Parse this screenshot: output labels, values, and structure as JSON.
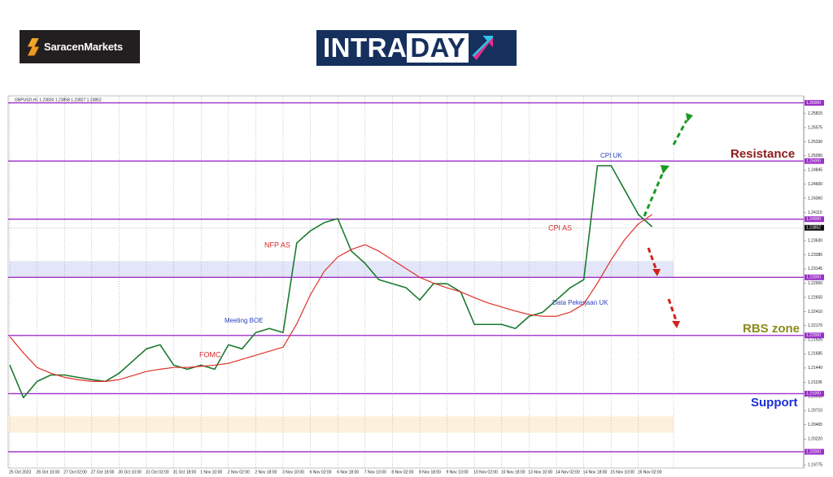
{
  "header": {
    "brand": "SaracenMarkets",
    "banner_left": "INTRA",
    "banner_right": "DAY"
  },
  "chart_data": {
    "type": "line",
    "title": "GBPUSD,H1  1.23830 1.23858 1.23827 1.23852",
    "categories": [
      "25 Oct 2023",
      null,
      "26 Oct 10:00",
      null,
      "27 Oct 02:00",
      null,
      "27 Oct 18:00",
      null,
      "30 Oct 10:00",
      null,
      "31 Oct 02:00",
      null,
      "31 Oct 18:00",
      null,
      "1 Nov 10:00",
      null,
      "2 Nov 02:00",
      null,
      "2 Nov 18:00",
      null,
      "3 Nov 10:00",
      null,
      "6 Nov 02:00",
      null,
      "6 Nov 18:00",
      null,
      "7 Nov 10:00",
      null,
      "8 Nov 02:00",
      null,
      "8 Nov 18:00",
      null,
      "9 Nov 10:00",
      null,
      "10 Nov 02:00",
      null,
      "10 Nov 18:00",
      null,
      "13 Nov 10:00",
      null,
      "14 Nov 02:00",
      null,
      "14 Nov 18:00",
      null,
      "15 Nov 10:00",
      null,
      "16 Nov 02:00",
      null
    ],
    "series": [
      {
        "color": "#1a7a2e",
        "values": [
          1.2149,
          1.2093,
          1.2121,
          1.2132,
          1.2132,
          1.2128,
          1.2124,
          1.2121,
          1.2135,
          1.2156,
          1.2177,
          1.2184,
          1.2149,
          1.2142,
          1.2149,
          1.2142,
          1.2184,
          1.2177,
          1.2205,
          1.2212,
          1.2205,
          1.2359,
          1.238,
          1.2394,
          1.2401,
          1.2345,
          1.2324,
          1.2296,
          1.2289,
          1.2282,
          1.2261,
          1.2289,
          1.2289,
          1.2275,
          1.2219,
          1.2219,
          1.2219,
          1.2212,
          1.2233,
          1.224,
          1.2261,
          1.2282,
          1.2296,
          1.2492,
          1.2492,
          1.245,
          1.2408,
          1.2387
        ]
      },
      {
        "color": "#e0302a",
        "values": [
          1.2198,
          1.217,
          1.2145,
          1.2135,
          1.2128,
          1.2124,
          1.2121,
          1.2121,
          1.2124,
          1.2131,
          1.2138,
          1.2142,
          1.2145,
          1.2145,
          1.2147,
          1.2149,
          1.2152,
          1.2159,
          1.2166,
          1.2173,
          1.218,
          1.222,
          1.227,
          1.231,
          1.2335,
          1.2348,
          1.2356,
          1.2345,
          1.233,
          1.2315,
          1.23,
          1.229,
          1.2282,
          1.2275,
          1.2265,
          1.2256,
          1.2249,
          1.2242,
          1.2236,
          1.2233,
          1.2233,
          1.224,
          1.2254,
          1.229,
          1.233,
          1.2365,
          1.2392,
          1.2408
        ]
      }
    ],
    "ylim": [
      1.1972,
      1.2612
    ],
    "yticks": [
      {
        "value": 1.25815,
        "label": "1.25815"
      },
      {
        "value": 1.25575,
        "label": "1.25575"
      },
      {
        "value": 1.2533,
        "label": "1.25330"
      },
      {
        "value": 1.2509,
        "label": "1.25090"
      },
      {
        "value": 1.24845,
        "label": "1.24845"
      },
      {
        "value": 1.246,
        "label": "1.24600"
      },
      {
        "value": 1.2436,
        "label": "1.24360"
      },
      {
        "value": 1.24115,
        "label": "1.24115"
      },
      {
        "value": 1.2363,
        "label": "1.23630"
      },
      {
        "value": 1.23385,
        "label": "1.23385"
      },
      {
        "value": 1.23145,
        "label": "1.23145"
      },
      {
        "value": 1.229,
        "label": "1.22900"
      },
      {
        "value": 1.22655,
        "label": "1.22655"
      },
      {
        "value": 1.2241,
        "label": "1.22410"
      },
      {
        "value": 1.2217,
        "label": "1.22170"
      },
      {
        "value": 1.21925,
        "label": "1.21925"
      },
      {
        "value": 1.21685,
        "label": "1.21685"
      },
      {
        "value": 1.2144,
        "label": "1.21440"
      },
      {
        "value": 1.21195,
        "label": "1.21195"
      },
      {
        "value": 1.2095,
        "label": "1.20950"
      },
      {
        "value": 1.2071,
        "label": "1.20710"
      },
      {
        "value": 1.20465,
        "label": "1.20465"
      },
      {
        "value": 1.2022,
        "label": "1.20220"
      },
      {
        "value": 1.19775,
        "label": "1.19775"
      }
    ],
    "levels": [
      {
        "value": 1.26,
        "label": "1.26000"
      },
      {
        "value": 1.25,
        "label": "1.25000"
      },
      {
        "value": 1.24,
        "label": "1.24000"
      },
      {
        "value": 1.23,
        "label": "1.23000"
      },
      {
        "value": 1.22,
        "label": "1.22000"
      },
      {
        "value": 1.21,
        "label": "1.21000"
      },
      {
        "value": 1.2,
        "label": "1.20000"
      }
    ],
    "level_color": "#9b2fc9",
    "last_price": {
      "value": 1.23852,
      "label": "1.23852"
    },
    "zones": [
      {
        "from": 1.2301,
        "to": 1.2328,
        "color": "#e3e6f8"
      },
      {
        "from": 1.2033,
        "to": 1.2061,
        "color": "#fdf0dc"
      }
    ],
    "grid": true,
    "annotations": [
      {
        "text": "CPI UK",
        "color": "#2b3fbf"
      },
      {
        "text": "CPI AS",
        "color": "#d42a2a"
      },
      {
        "text": "NFP AS",
        "color": "#d42a2a"
      },
      {
        "text": "Meeting BOE",
        "color": "#2b3fbf"
      },
      {
        "text": "FOMC",
        "color": "#d42a2a"
      },
      {
        "text": "Data Pekerjaan UK",
        "color": "#2b3fbf"
      },
      {
        "text": "Resistance",
        "color": "#8b1a1a"
      },
      {
        "text": "RBS zone",
        "color": "#8a8a1a"
      },
      {
        "text": "Support",
        "color": "#1a2fd6"
      }
    ]
  }
}
